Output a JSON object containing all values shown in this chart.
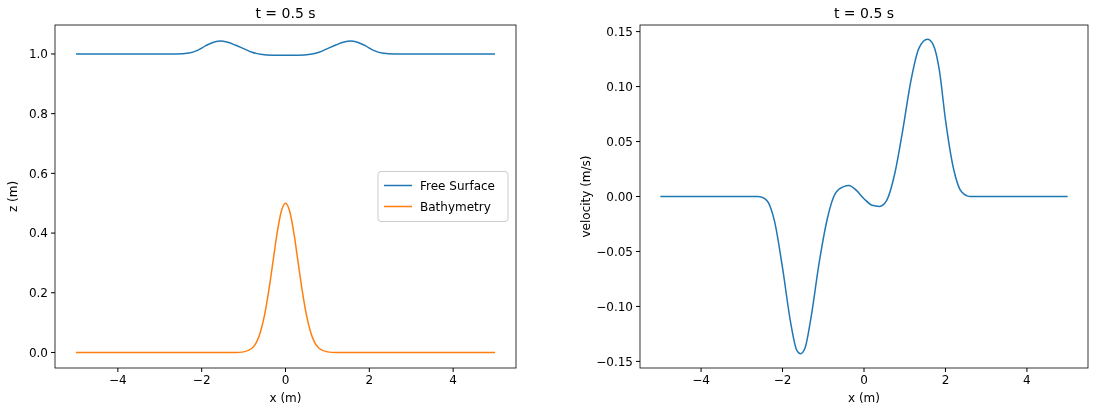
{
  "chart_data": [
    {
      "type": "line",
      "title": "t = 0.5 s",
      "xlabel": "x (m)",
      "ylabel": "z (m)",
      "legend": "right",
      "grid": false,
      "xlim": [
        -5.5,
        5.5
      ],
      "ylim": [
        -0.052,
        1.097
      ],
      "xticks": [
        -4,
        -2,
        0,
        2,
        4
      ],
      "yticks": [
        {
          "value": 0,
          "label": "0.0"
        },
        {
          "value": 0.2,
          "label": "0.2"
        },
        {
          "value": 0.4,
          "label": "0.4"
        },
        {
          "value": 0.6,
          "label": "0.6"
        },
        {
          "value": 0.8,
          "label": "0.8"
        },
        {
          "value": 1,
          "label": "1.0"
        }
      ],
      "series": [
        {
          "name": "Free Surface",
          "color": "#1f77b4",
          "x": [
            -5,
            -2.6,
            -2.3,
            -2.1,
            -1.9,
            -1.7,
            -1.55,
            -1.4,
            -1.2,
            -1.0,
            -0.8,
            -0.6,
            -0.3,
            0,
            0.3,
            0.6,
            0.8,
            1.0,
            1.2,
            1.4,
            1.55,
            1.7,
            1.9,
            2.1,
            2.3,
            2.6,
            5
          ],
          "values": [
            1.0,
            1.0,
            1.003,
            1.012,
            1.028,
            1.04,
            1.043,
            1.04,
            1.03,
            1.018,
            1.006,
            0.999,
            0.996,
            0.996,
            0.996,
            0.999,
            1.006,
            1.018,
            1.03,
            1.04,
            1.043,
            1.04,
            1.028,
            1.012,
            1.003,
            1.0,
            1.0
          ]
        },
        {
          "name": "Bathymetry",
          "color": "#ff7f0e",
          "x": [
            -5,
            -1.2,
            -1.0,
            -0.8,
            -0.6,
            -0.5,
            -0.4,
            -0.3,
            -0.2,
            -0.1,
            0,
            0.1,
            0.2,
            0.3,
            0.4,
            0.5,
            0.6,
            0.8,
            1.0,
            1.2,
            5
          ],
          "values": [
            0,
            0,
            0.002,
            0.014,
            0.068,
            0.125,
            0.206,
            0.303,
            0.4,
            0.473,
            0.5,
            0.473,
            0.4,
            0.303,
            0.206,
            0.125,
            0.068,
            0.014,
            0.002,
            0,
            0
          ]
        }
      ]
    },
    {
      "type": "line",
      "title": "t = 0.5 s",
      "xlabel": "x (m)",
      "ylabel": "velocity (m/s)",
      "grid": false,
      "xlim": [
        -5.5,
        5.5
      ],
      "ylim": [
        -0.156,
        0.156
      ],
      "xticks": [
        -4,
        -2,
        0,
        2,
        4
      ],
      "yticks": [
        {
          "value": -0.15,
          "label": "−0.15"
        },
        {
          "value": -0.1,
          "label": "−0.10"
        },
        {
          "value": -0.05,
          "label": "−0.05"
        },
        {
          "value": 0,
          "label": "0.00"
        },
        {
          "value": 0.05,
          "label": "0.05"
        },
        {
          "value": 0.1,
          "label": "0.10"
        },
        {
          "value": 0.15,
          "label": "0.15"
        }
      ],
      "series": [
        {
          "color": "#1f77b4",
          "x": [
            -5,
            -2.6,
            -2.4,
            -2.2,
            -2.0,
            -1.8,
            -1.65,
            -1.56,
            -1.45,
            -1.3,
            -1.1,
            -0.9,
            -0.7,
            -0.5,
            -0.37,
            -0.2,
            0,
            0.2,
            0.38,
            0.55,
            0.75,
            0.95,
            1.15,
            1.35,
            1.56,
            1.7,
            1.85,
            2.0,
            2.2,
            2.4,
            2.6,
            5
          ],
          "values": [
            0,
            0,
            -0.003,
            -0.022,
            -0.065,
            -0.115,
            -0.14,
            -0.143,
            -0.138,
            -0.11,
            -0.06,
            -0.02,
            0.003,
            0.009,
            0.01,
            0.006,
            -0.002,
            -0.008,
            -0.009,
            -0.004,
            0.02,
            0.06,
            0.105,
            0.135,
            0.143,
            0.138,
            0.115,
            0.07,
            0.025,
            0.004,
            0,
            0
          ]
        }
      ]
    }
  ]
}
